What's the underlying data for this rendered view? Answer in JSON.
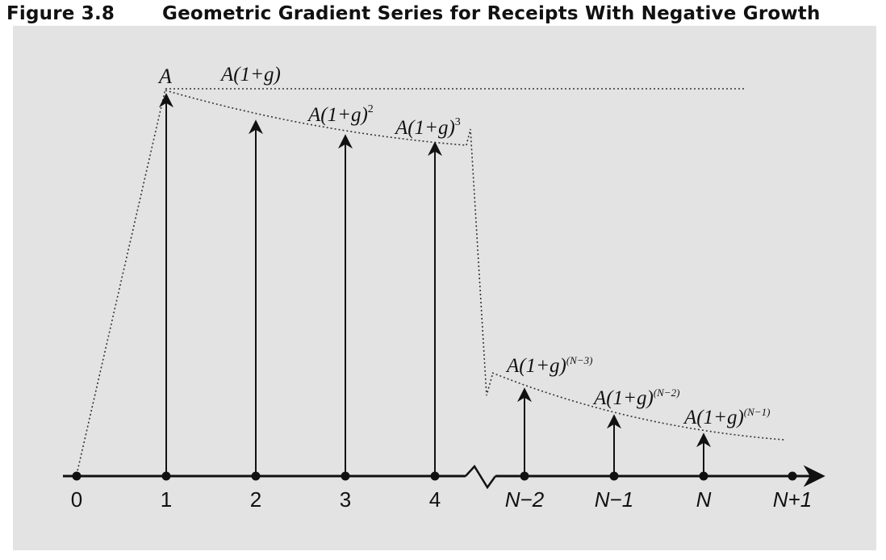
{
  "caption": {
    "figure_number": "Figure 3.8",
    "title": "Geometric Gradient Series for Receipts With Negative Growth"
  },
  "axis": {
    "ticks": [
      "0",
      "1",
      "2",
      "3",
      "4",
      "N−2",
      "N−1",
      "N",
      "N+1"
    ]
  },
  "arrows": {
    "labels": [
      {
        "pre": "A",
        "sup": ""
      },
      {
        "pre": "A(1+g)",
        "sup": ""
      },
      {
        "pre": "A(1+g)",
        "sup": "2"
      },
      {
        "pre": "A(1+g)",
        "sup": "3"
      },
      {
        "pre": "A(1+g)",
        "sup": "(N−3)"
      },
      {
        "pre": "A(1+g)",
        "sup": "(N−2)"
      },
      {
        "pre": "A(1+g)",
        "sup": "(N−1)"
      }
    ]
  },
  "colors": {
    "background": "#e3e3e3",
    "ink": "#111111"
  }
}
